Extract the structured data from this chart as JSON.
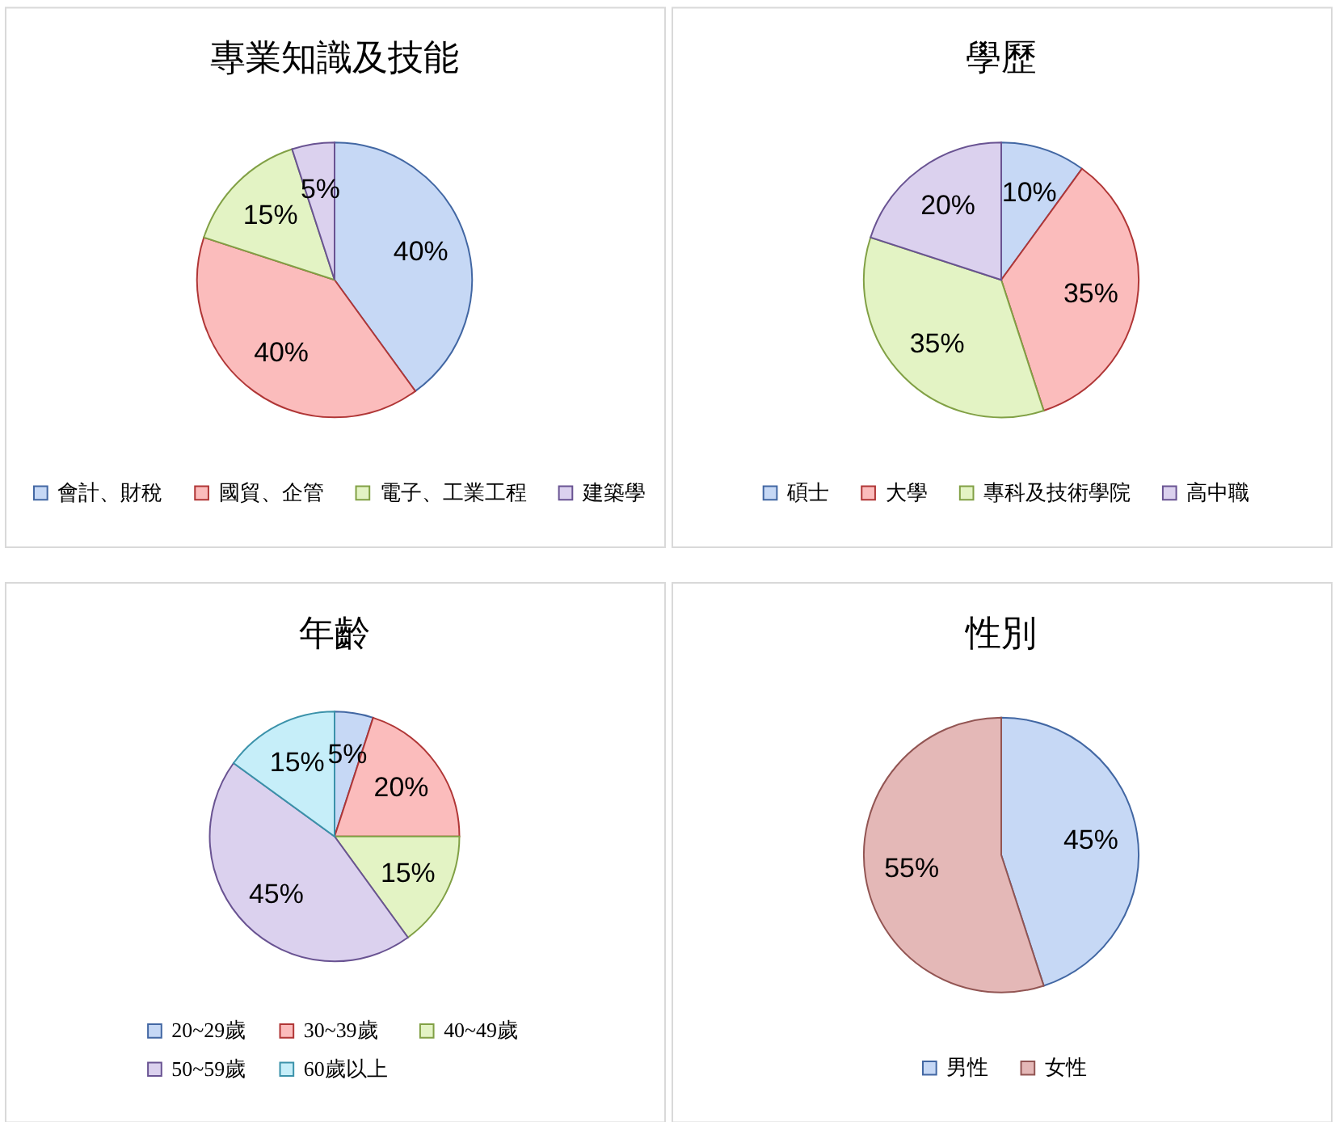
{
  "chart_data": [
    {
      "type": "pie",
      "title": "專業知識及技能",
      "categories": [
        "會計、財稅",
        "國貿、企管",
        "電子、工業工程",
        "建築學"
      ],
      "values": [
        40,
        40,
        15,
        5
      ],
      "colors": [
        "#c6d8f5",
        "#fbbcbc",
        "#e3f3c4",
        "#dbd1ee"
      ],
      "value_labels": [
        "40%",
        "40%",
        "15%",
        "5%"
      ],
      "legend": "bottom"
    },
    {
      "type": "pie",
      "title": "學歷",
      "categories": [
        "碩士",
        "大學",
        "專科及技術學院",
        "高中職"
      ],
      "values": [
        10,
        35,
        35,
        20
      ],
      "colors": [
        "#c6d8f5",
        "#fbbcbc",
        "#e3f3c4",
        "#dbd1ee"
      ],
      "value_labels": [
        "10%",
        "35%",
        "35%",
        "20%"
      ],
      "legend": "bottom"
    },
    {
      "type": "pie",
      "title": "年齡",
      "categories": [
        "20~29歲",
        "30~39歲",
        "40~49歲",
        "50~59歲",
        "60歲以上"
      ],
      "values": [
        5,
        20,
        15,
        45,
        15
      ],
      "colors": [
        "#c6d8f5",
        "#fbbcbc",
        "#e3f3c4",
        "#dbd1ee",
        "#c6eef9"
      ],
      "value_labels": [
        "5%",
        "20%",
        "15%",
        "45%",
        "15%"
      ],
      "legend": "bottom"
    },
    {
      "type": "pie",
      "title": "性別",
      "categories": [
        "男性",
        "女性"
      ],
      "values": [
        45,
        55
      ],
      "colors": [
        "#c6d8f5",
        "#e4b8b7"
      ],
      "value_labels": [
        "45%",
        "55%"
      ],
      "legend": "bottom"
    }
  ]
}
